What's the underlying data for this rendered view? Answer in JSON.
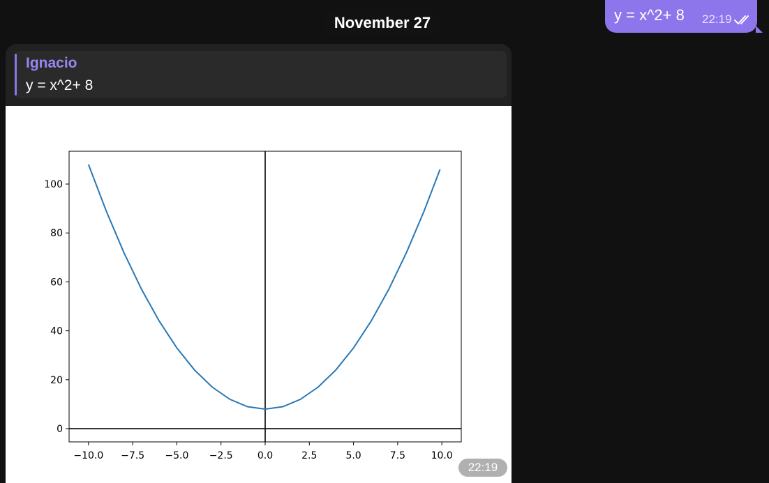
{
  "date_separator": "November 27",
  "outgoing_message": {
    "text": "y = x^2+ 8",
    "time": "22:19",
    "status": "read",
    "check_icon": "double-check-icon"
  },
  "incoming_message": {
    "reply_to": {
      "sender": "Ignacio",
      "text": "y = x^2+ 8"
    },
    "time": "22:19"
  },
  "colors": {
    "background": "#111111",
    "outgoing_bubble": "#8d76ec",
    "incoming_bubble": "#212121",
    "accent": "#8d76ec",
    "curve": "#2878b5"
  },
  "chart_data": {
    "type": "line",
    "title": "",
    "xlabel": "",
    "ylabel": "",
    "xlim": [
      -11.1,
      11.1
    ],
    "ylim": [
      -5.4,
      113.4
    ],
    "x_ticks": [
      -10,
      -7.5,
      -5,
      -2.5,
      0,
      2.5,
      5,
      7.5,
      10
    ],
    "x_tick_labels": [
      "−10.0",
      "−7.5",
      "−5.0",
      "−2.5",
      "0.0",
      "2.5",
      "5.0",
      "7.5",
      "10.0"
    ],
    "y_ticks": [
      0,
      20,
      40,
      60,
      80,
      100
    ],
    "y_tick_labels": [
      "0",
      "20",
      "40",
      "60",
      "80",
      "100"
    ],
    "reference_lines": {
      "horizontal": 0,
      "vertical": 0
    },
    "grid": false,
    "legend": "none",
    "series": [
      {
        "x": [
          -10,
          -9,
          -8,
          -7,
          -6,
          -5,
          -4,
          -3,
          -2,
          -1,
          0,
          1,
          2,
          3,
          4,
          5,
          6,
          7,
          8,
          9,
          9.9
        ],
        "y": [
          108,
          89,
          72,
          57,
          44,
          33,
          24,
          17,
          12,
          9,
          8,
          9,
          12,
          17,
          24,
          33,
          44,
          57,
          72,
          89,
          106
        ]
      }
    ]
  }
}
